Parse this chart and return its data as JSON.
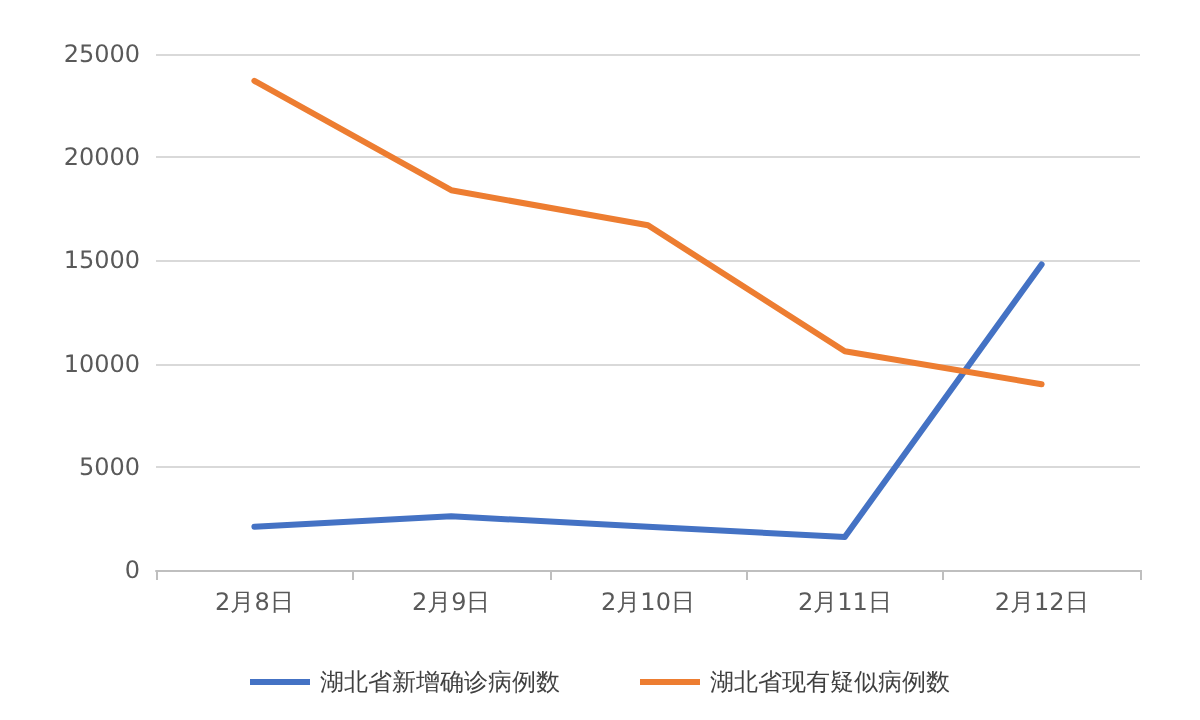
{
  "chart_data": {
    "type": "line",
    "categories": [
      "2月8日",
      "2月9日",
      "2月10日",
      "2月11日",
      "2月12日"
    ],
    "series": [
      {
        "name": "湖北省新增确诊病例数",
        "color": "#4472c4",
        "values": [
          2100,
          2600,
          2100,
          1600,
          14800
        ]
      },
      {
        "name": "湖北省现有疑似病例数",
        "color": "#ed7d31",
        "values": [
          23700,
          18400,
          16700,
          10600,
          9000
        ]
      }
    ],
    "ylim": [
      0,
      25000
    ],
    "yticks": [
      0,
      5000,
      10000,
      15000,
      20000,
      25000
    ],
    "grid": "y",
    "legend": "bottom",
    "marker": "none",
    "line_style": "solid"
  }
}
